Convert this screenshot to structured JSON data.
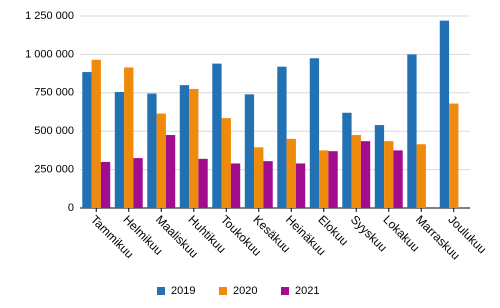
{
  "chart_data": {
    "type": "bar",
    "categories": [
      "Tammikuu",
      "Helmikuu",
      "Maaliskuu",
      "Huhtikuu",
      "Toukokuu",
      "Kesäkuu",
      "Heinäkuu",
      "Elokuu",
      "Syyskuu",
      "Lokakuu",
      "Marraskuu",
      "Joulukuu"
    ],
    "series": [
      {
        "name": "2019",
        "color": "#2271b3",
        "values": [
          885000,
          755000,
          745000,
          800000,
          940000,
          740000,
          920000,
          975000,
          620000,
          540000,
          1000000,
          1220000
        ]
      },
      {
        "name": "2020",
        "color": "#f08a0c",
        "values": [
          965000,
          915000,
          615000,
          775000,
          585000,
          395000,
          450000,
          375000,
          475000,
          435000,
          415000,
          680000
        ]
      },
      {
        "name": "2021",
        "color": "#a10d8e",
        "values": [
          300000,
          325000,
          475000,
          320000,
          290000,
          305000,
          290000,
          370000,
          435000,
          375000,
          null,
          null
        ]
      }
    ],
    "ylim": [
      0,
      1250000
    ],
    "yticks": [
      0,
      {
        "value": 250000,
        "label": "250 000"
      },
      {
        "value": 500000,
        "label": "500 000"
      },
      {
        "value": 750000,
        "label": "750 000"
      },
      {
        "value": 1000000,
        "label": "1 000 000"
      },
      {
        "value": 1250000,
        "label": "1 250 000"
      }
    ],
    "grid": true,
    "legend": "bottom"
  }
}
